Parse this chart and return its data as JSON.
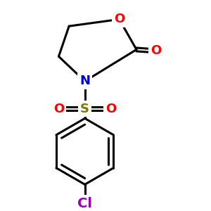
{
  "bg_color": "#ffffff",
  "atom_colors": {
    "O": "#ff0000",
    "N": "#0000cc",
    "S": "#7b7b00",
    "Cl": "#9900bb",
    "C": "#000000"
  },
  "line_color": "#000000",
  "line_width": 2.2,
  "font_size_atoms": 13,
  "font_size_cl": 14,
  "font_size_s": 13
}
